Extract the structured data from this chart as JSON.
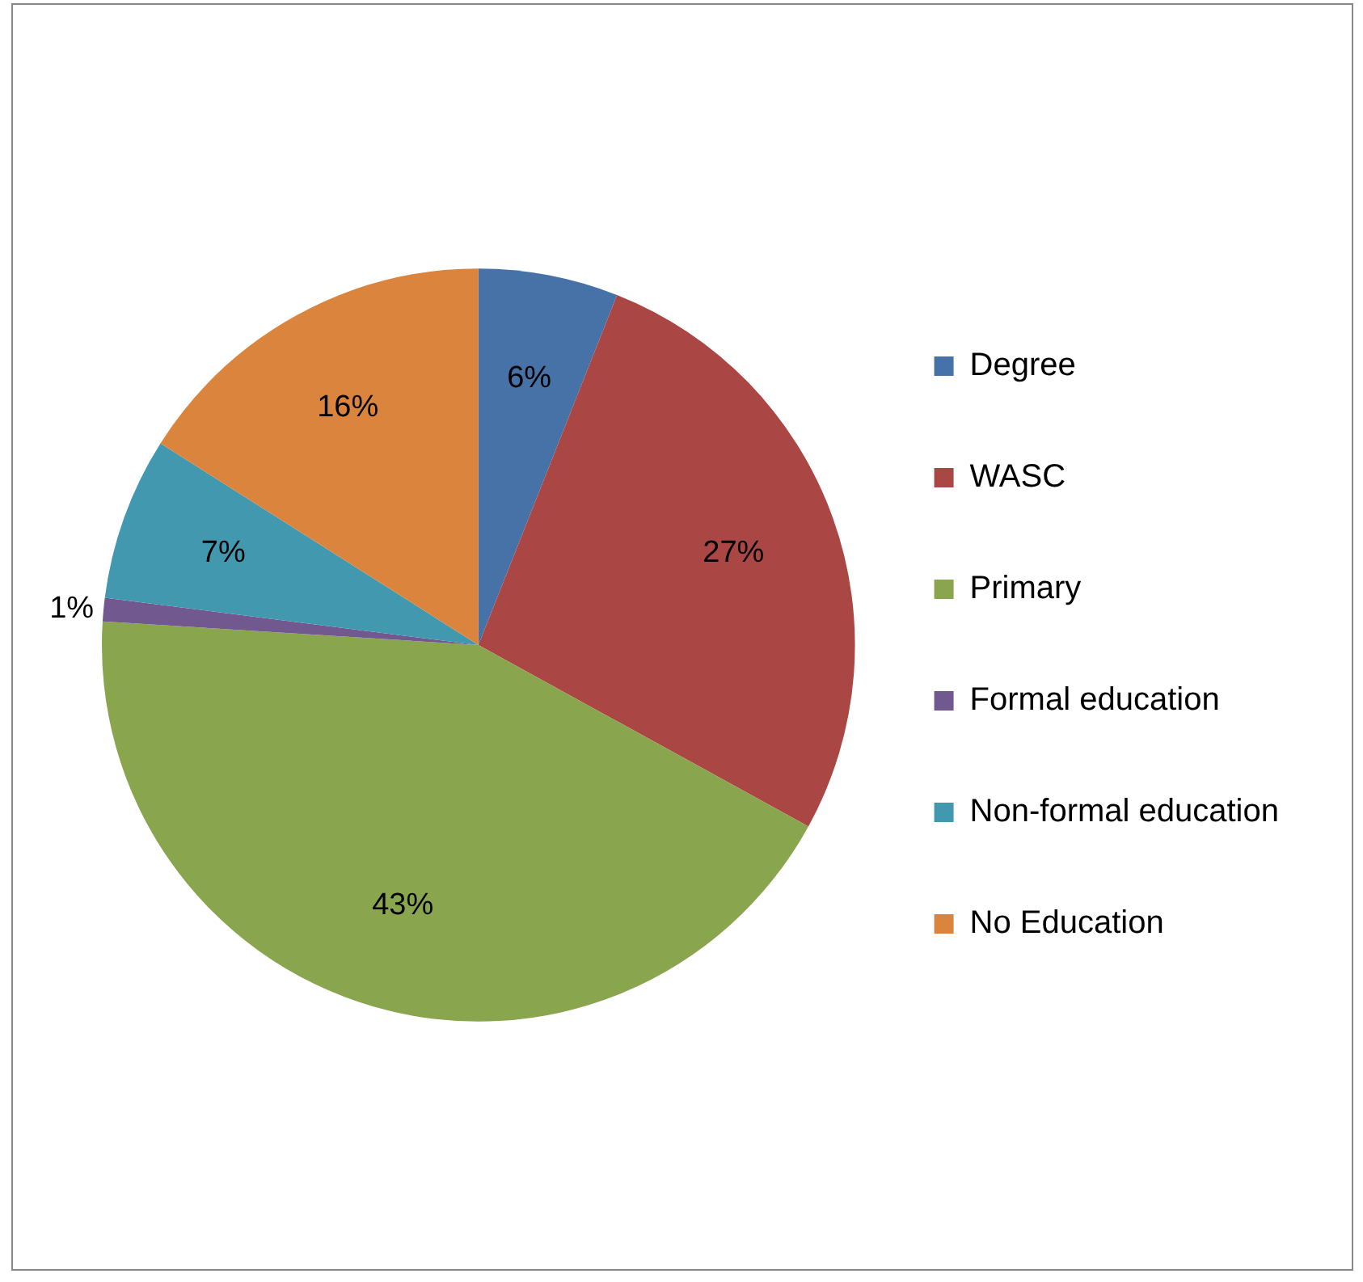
{
  "chart_data": {
    "type": "pie",
    "categories": [
      "Degree",
      "WASC",
      "Primary",
      "Formal education",
      "Non-formal education",
      "No Education"
    ],
    "values": [
      6,
      27,
      43,
      1,
      7,
      16
    ],
    "value_labels": [
      "6%",
      "27%",
      "43%",
      "1%",
      "7%",
      "16%"
    ],
    "colors": [
      "#4672a8",
      "#aa4643",
      "#89a54e",
      "#71588f",
      "#4198af",
      "#db843d"
    ],
    "legend": "right"
  }
}
